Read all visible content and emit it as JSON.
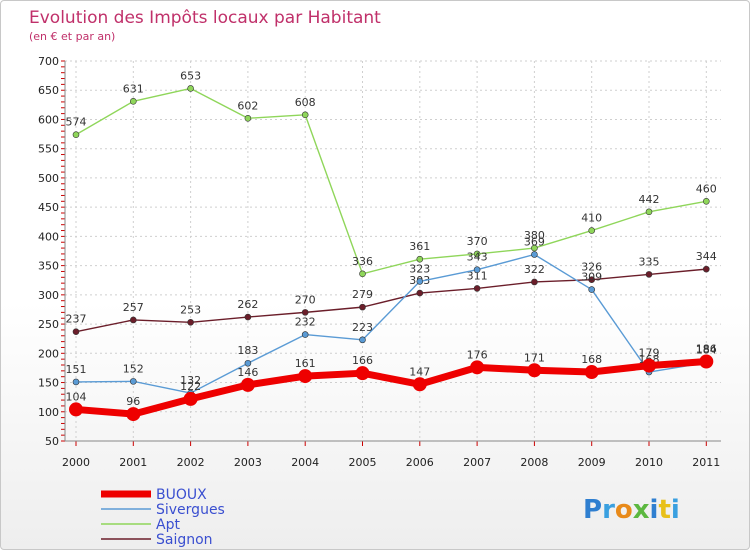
{
  "chart_data": {
    "type": "line",
    "title": "Evolution des Impôts locaux par Habitant",
    "subtitle": "(en € et par an)",
    "categories": [
      "2000",
      "2001",
      "2002",
      "2003",
      "2004",
      "2005",
      "2006",
      "2007",
      "2008",
      "2009",
      "2010",
      "2011"
    ],
    "ylim": [
      50,
      700
    ],
    "yticks": [
      50,
      100,
      150,
      200,
      250,
      300,
      350,
      400,
      450,
      500,
      550,
      600,
      650,
      700
    ],
    "grid": true,
    "legend_position": "bottom-left",
    "series": [
      {
        "name": "Saignon",
        "color": "#6b1e2a",
        "values": [
          237,
          257,
          253,
          262,
          270,
          279,
          303,
          311,
          322,
          326,
          335,
          344
        ]
      },
      {
        "name": "Apt",
        "color": "#8fd65a",
        "values": [
          574,
          631,
          653,
          602,
          608,
          336,
          361,
          370,
          380,
          410,
          442,
          460
        ]
      },
      {
        "name": "Sivergues",
        "color": "#5a9bd5",
        "values": [
          151,
          152,
          132,
          183,
          232,
          223,
          323,
          343,
          369,
          309,
          168,
          184
        ]
      },
      {
        "name": "BUOUX",
        "color": "#ee0000",
        "values": [
          104,
          96,
          122,
          146,
          161,
          166,
          147,
          176,
          171,
          168,
          179,
          186
        ]
      }
    ],
    "legend_order": [
      "BUOUX",
      "Sivergues",
      "Apt",
      "Saignon"
    ]
  },
  "branding": {
    "logo_text": "Proxiti"
  }
}
